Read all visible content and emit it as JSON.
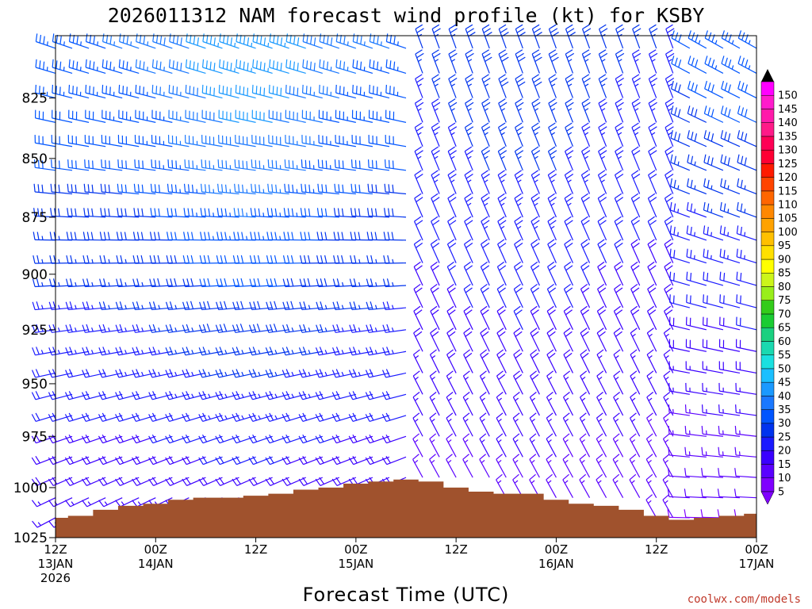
{
  "credit": "coolwx.com/models",
  "chart_data": {
    "type": "wind-barb-profile",
    "title": "2026011312 NAM forecast wind profile (kt) for KSBY",
    "xlabel": "Forecast Time (UTC)",
    "ylabel": "",
    "units": "kt",
    "xlim_hours": [
      0,
      84
    ],
    "ylim_hpa": [
      1025,
      800
    ],
    "yticks": [
      825,
      850,
      875,
      900,
      925,
      950,
      975,
      1000,
      1025
    ],
    "xticks": [
      {
        "hour": 0,
        "line1": "12Z",
        "line2": "13JAN",
        "line3": "2026"
      },
      {
        "hour": 12,
        "line1": "00Z",
        "line2": "14JAN",
        "line3": ""
      },
      {
        "hour": 24,
        "line1": "12Z",
        "line2": "",
        "line3": ""
      },
      {
        "hour": 36,
        "line1": "00Z",
        "line2": "15JAN",
        "line3": ""
      },
      {
        "hour": 48,
        "line1": "12Z",
        "line2": "",
        "line3": ""
      },
      {
        "hour": 60,
        "line1": "00Z",
        "line2": "16JAN",
        "line3": ""
      },
      {
        "hour": 72,
        "line1": "12Z",
        "line2": "",
        "line3": ""
      },
      {
        "hour": 84,
        "line1": "00Z",
        "line2": "17JAN",
        "line3": ""
      }
    ],
    "surface_pressure": {
      "hours": [
        0,
        3,
        6,
        9,
        12,
        15,
        18,
        21,
        24,
        27,
        30,
        33,
        36,
        39,
        42,
        45,
        48,
        51,
        54,
        57,
        60,
        63,
        66,
        69,
        72,
        75,
        78,
        81,
        84
      ],
      "values": [
        1015,
        1014,
        1011,
        1009,
        1008,
        1006,
        1005,
        1005,
        1004,
        1003,
        1001,
        1000,
        998,
        997,
        996,
        997,
        1000,
        1002,
        1003,
        1003,
        1006,
        1008,
        1009,
        1011,
        1014,
        1016,
        1015,
        1014,
        1013
      ]
    },
    "barb_hours": [
      0,
      2,
      4,
      6,
      8,
      10,
      12,
      14,
      16,
      18,
      20,
      22,
      24,
      26,
      28,
      30,
      32,
      34,
      36,
      38,
      40,
      42,
      44,
      46,
      48,
      50,
      52,
      54,
      56,
      58,
      60,
      62,
      64,
      66,
      68,
      70,
      72,
      74,
      76,
      78,
      80,
      82,
      84
    ],
    "barb_levels_hpa": [
      805,
      815,
      825,
      835,
      845,
      855,
      865,
      875,
      885,
      895,
      905,
      915,
      925,
      935,
      945,
      955,
      965,
      975,
      985,
      995,
      1005,
      1015
    ],
    "regimes": [
      {
        "from_hour": 0,
        "to_hour": 42,
        "dir_upper_deg": 290,
        "dir_lower_deg": 240,
        "speed_upper_kt": 35,
        "speed_lower_kt": 15,
        "peak_hour": 24,
        "peak_kt": 45
      },
      {
        "from_hour": 44,
        "to_hour": 74,
        "dir_upper_deg": 340,
        "dir_lower_deg": 330,
        "speed_upper_kt": 25,
        "speed_lower_kt": 12,
        "peak_hour": 56,
        "peak_kt": 30
      },
      {
        "from_hour": 76,
        "to_hour": 84,
        "dir_upper_deg": 300,
        "dir_lower_deg": 270,
        "speed_upper_kt": 30,
        "speed_lower_kt": 8,
        "peak_hour": 84,
        "peak_kt": 35
      }
    ],
    "colorbar": {
      "labels": [
        "5",
        "10",
        "15",
        "20",
        "25",
        "30",
        "35",
        "40",
        "45",
        "50",
        "55",
        "60",
        "65",
        "70",
        "75",
        "80",
        "85",
        "90",
        "95",
        "100",
        "105",
        "110",
        "115",
        "120",
        "125",
        "130",
        "135",
        "140",
        "145",
        "150"
      ],
      "colors": [
        "#7f00ff",
        "#5a00ff",
        "#3a00ff",
        "#1a1aff",
        "#0033ee",
        "#0055ff",
        "#1a78ff",
        "#1a99ff",
        "#1abfff",
        "#1ae0e0",
        "#1ad9b0",
        "#1ad080",
        "#1acc33",
        "#33cc1a",
        "#99ee1a",
        "#ccf51a",
        "#ffff00",
        "#ffe000",
        "#ffc000",
        "#ffa200",
        "#ff8800",
        "#ff6600",
        "#ff4400",
        "#ff1a00",
        "#ff0033",
        "#ff0055",
        "#ff1a88",
        "#ff1aaa",
        "#ff1acc",
        "#ff00ff"
      ]
    }
  }
}
